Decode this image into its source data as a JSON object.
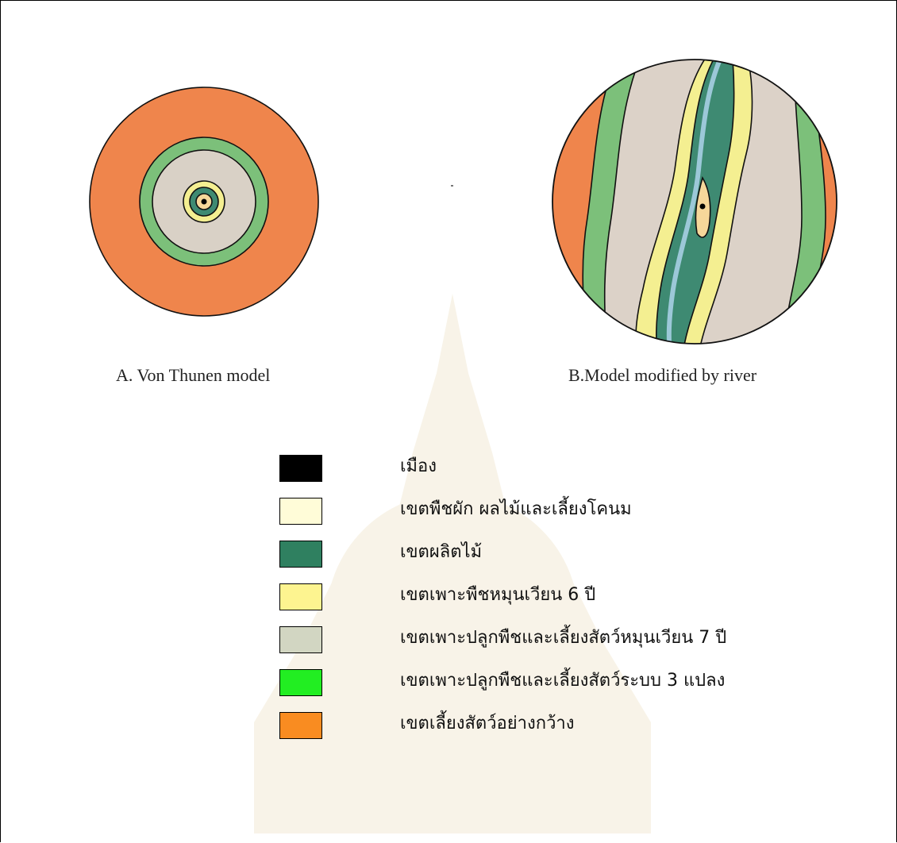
{
  "captions": {
    "model_a": "A. Von Thunen model",
    "model_b": "B.Model modified by river"
  },
  "colors": {
    "city": "#000000",
    "vegetables_dairy": "#fffcd8",
    "forestry": "#2f8060",
    "six_year_rotation": "#fdf490",
    "seven_year_rotation": "#d2d6c2",
    "three_field": "#22ee22",
    "ranching": "#f98c21"
  },
  "legend": [
    {
      "label": "เมือง",
      "color": "#000000"
    },
    {
      "label": "เขตพืชผัก ผลไม้และเลี้ยงโคนม",
      "color": "#fffcd8"
    },
    {
      "label": "เขตผลิตไม้",
      "color": "#2f8060"
    },
    {
      "label": "เขตเพาะพืชหมุนเวียน 6 ปี",
      "color": "#fdf490"
    },
    {
      "label": "เขตเพาะปลูกพืชและเลี้ยงสัตว์หมุนเวียน 7 ปี",
      "color": "#d2d6c2"
    },
    {
      "label": "เขตเพาะปลูกพืชและเลี้ยงสัตว์ระบบ 3 แปลง",
      "color": "#22ee22"
    },
    {
      "label": "เขตเลี้ยงสัตว์อย่างกว้าง",
      "color": "#f98c21"
    }
  ]
}
